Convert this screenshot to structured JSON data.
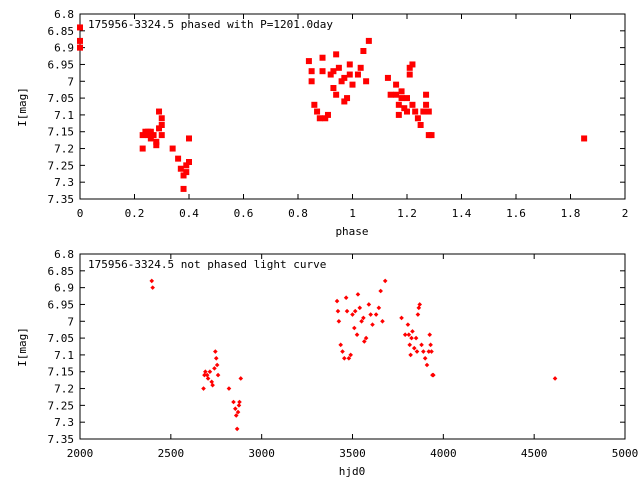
{
  "chart_data": [
    {
      "type": "scatter",
      "title": "175956-3324.5 phased with P=1201.0day",
      "xlabel": "phase",
      "ylabel": "I[mag]",
      "xlim": [
        0,
        2
      ],
      "ylim": [
        6.8,
        7.35
      ],
      "y_inverted": true,
      "x_ticks": [
        "0",
        "0.2",
        "0.4",
        "0.6",
        "0.8",
        "1",
        "1.2",
        "1.4",
        "1.6",
        "1.8",
        "2"
      ],
      "y_ticks": [
        "6.8",
        "6.85",
        "6.9",
        "6.95",
        "7",
        "7.05",
        "7.1",
        "7.15",
        "7.2",
        "7.25",
        "7.3",
        "7.35"
      ],
      "marker": "filled square",
      "color": "#ff0000",
      "points": [
        [
          0.0,
          6.84
        ],
        [
          0.0,
          6.88
        ],
        [
          0.0,
          6.9
        ],
        [
          0.23,
          7.2
        ],
        [
          0.23,
          7.16
        ],
        [
          0.24,
          7.15
        ],
        [
          0.25,
          7.15
        ],
        [
          0.25,
          7.16
        ],
        [
          0.26,
          7.17
        ],
        [
          0.26,
          7.15
        ],
        [
          0.27,
          7.16
        ],
        [
          0.28,
          7.18
        ],
        [
          0.28,
          7.19
        ],
        [
          0.29,
          7.14
        ],
        [
          0.29,
          7.09
        ],
        [
          0.3,
          7.11
        ],
        [
          0.3,
          7.13
        ],
        [
          0.3,
          7.16
        ],
        [
          0.34,
          7.2
        ],
        [
          0.36,
          7.23
        ],
        [
          0.37,
          7.26
        ],
        [
          0.38,
          7.28
        ],
        [
          0.38,
          7.32
        ],
        [
          0.39,
          7.27
        ],
        [
          0.39,
          7.25
        ],
        [
          0.4,
          7.24
        ],
        [
          0.4,
          7.17
        ],
        [
          0.84,
          6.94
        ],
        [
          0.85,
          6.97
        ],
        [
          0.85,
          7.0
        ],
        [
          0.86,
          7.07
        ],
        [
          0.87,
          7.09
        ],
        [
          0.88,
          7.11
        ],
        [
          0.89,
          6.93
        ],
        [
          0.89,
          6.97
        ],
        [
          0.9,
          7.11
        ],
        [
          0.91,
          7.1
        ],
        [
          0.92,
          6.98
        ],
        [
          0.93,
          7.02
        ],
        [
          0.93,
          6.97
        ],
        [
          0.94,
          7.04
        ],
        [
          0.94,
          6.92
        ],
        [
          0.95,
          6.96
        ],
        [
          0.96,
          7.0
        ],
        [
          0.97,
          6.99
        ],
        [
          0.97,
          7.06
        ],
        [
          0.98,
          7.05
        ],
        [
          0.99,
          6.95
        ],
        [
          0.99,
          6.98
        ],
        [
          1.0,
          7.01
        ],
        [
          1.02,
          6.98
        ],
        [
          1.03,
          6.96
        ],
        [
          1.04,
          6.91
        ],
        [
          1.05,
          7.0
        ],
        [
          1.06,
          6.88
        ],
        [
          1.13,
          6.99
        ],
        [
          1.14,
          7.04
        ],
        [
          1.16,
          7.01
        ],
        [
          1.16,
          7.04
        ],
        [
          1.17,
          7.07
        ],
        [
          1.17,
          7.1
        ],
        [
          1.18,
          7.05
        ],
        [
          1.18,
          7.03
        ],
        [
          1.19,
          7.08
        ],
        [
          1.2,
          7.05
        ],
        [
          1.2,
          7.09
        ],
        [
          1.21,
          6.98
        ],
        [
          1.21,
          6.96
        ],
        [
          1.22,
          6.95
        ],
        [
          1.22,
          7.07
        ],
        [
          1.23,
          7.09
        ],
        [
          1.24,
          7.11
        ],
        [
          1.25,
          7.13
        ],
        [
          1.26,
          7.09
        ],
        [
          1.27,
          7.04
        ],
        [
          1.27,
          7.07
        ],
        [
          1.28,
          7.09
        ],
        [
          1.28,
          7.16
        ],
        [
          1.29,
          7.16
        ],
        [
          1.85,
          7.17
        ]
      ]
    },
    {
      "type": "scatter",
      "title": "175956-3324.5 not phased light curve",
      "xlabel": "hjd0",
      "ylabel": "I[mag]",
      "xlim": [
        2000,
        5000
      ],
      "ylim": [
        6.8,
        7.35
      ],
      "y_inverted": true,
      "x_ticks": [
        "2000",
        "2500",
        "3000",
        "3500",
        "4000",
        "4500",
        "5000"
      ],
      "y_ticks": [
        "6.8",
        "6.85",
        "6.9",
        "6.95",
        "7",
        "7.05",
        "7.1",
        "7.15",
        "7.2",
        "7.25",
        "7.3",
        "7.35"
      ],
      "marker": "small diamond",
      "color": "#ff0000",
      "points": [
        [
          2395,
          6.88
        ],
        [
          2400,
          6.9
        ],
        [
          2680,
          7.2
        ],
        [
          2685,
          7.16
        ],
        [
          2690,
          7.15
        ],
        [
          2700,
          7.16
        ],
        [
          2705,
          7.17
        ],
        [
          2715,
          7.15
        ],
        [
          2725,
          7.18
        ],
        [
          2730,
          7.19
        ],
        [
          2740,
          7.14
        ],
        [
          2745,
          7.09
        ],
        [
          2750,
          7.11
        ],
        [
          2755,
          7.13
        ],
        [
          2760,
          7.16
        ],
        [
          2820,
          7.2
        ],
        [
          2845,
          7.24
        ],
        [
          2855,
          7.26
        ],
        [
          2860,
          7.28
        ],
        [
          2865,
          7.32
        ],
        [
          2870,
          7.27
        ],
        [
          2875,
          7.25
        ],
        [
          2878,
          7.24
        ],
        [
          2885,
          7.17
        ],
        [
          3415,
          6.94
        ],
        [
          3420,
          6.97
        ],
        [
          3425,
          7.0
        ],
        [
          3435,
          7.07
        ],
        [
          3445,
          7.09
        ],
        [
          3455,
          7.11
        ],
        [
          3465,
          6.93
        ],
        [
          3470,
          6.97
        ],
        [
          3480,
          7.11
        ],
        [
          3490,
          7.1
        ],
        [
          3500,
          6.98
        ],
        [
          3510,
          7.02
        ],
        [
          3515,
          6.97
        ],
        [
          3525,
          7.04
        ],
        [
          3530,
          6.92
        ],
        [
          3540,
          6.96
        ],
        [
          3550,
          7.0
        ],
        [
          3560,
          6.99
        ],
        [
          3565,
          7.06
        ],
        [
          3575,
          7.05
        ],
        [
          3590,
          6.95
        ],
        [
          3600,
          6.98
        ],
        [
          3610,
          7.01
        ],
        [
          3630,
          6.98
        ],
        [
          3645,
          6.96
        ],
        [
          3655,
          6.91
        ],
        [
          3665,
          7.0
        ],
        [
          3680,
          6.88
        ],
        [
          3770,
          6.99
        ],
        [
          3790,
          7.04
        ],
        [
          3805,
          7.01
        ],
        [
          3810,
          7.04
        ],
        [
          3815,
          7.07
        ],
        [
          3820,
          7.1
        ],
        [
          3825,
          7.05
        ],
        [
          3830,
          7.03
        ],
        [
          3840,
          7.08
        ],
        [
          3850,
          7.05
        ],
        [
          3855,
          7.09
        ],
        [
          3860,
          6.98
        ],
        [
          3865,
          6.96
        ],
        [
          3870,
          6.95
        ],
        [
          3880,
          7.07
        ],
        [
          3890,
          7.09
        ],
        [
          3900,
          7.11
        ],
        [
          3910,
          7.13
        ],
        [
          3920,
          7.09
        ],
        [
          3925,
          7.04
        ],
        [
          3930,
          7.07
        ],
        [
          3935,
          7.09
        ],
        [
          3940,
          7.16
        ],
        [
          3945,
          7.16
        ],
        [
          4615,
          7.17
        ]
      ]
    }
  ]
}
